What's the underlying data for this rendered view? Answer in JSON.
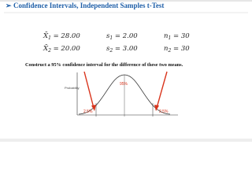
{
  "slide": {
    "bullet": "➢",
    "title": "Confidence Intervals, Independent Samples t-Test",
    "stats": [
      [
        {
          "symbol": "X̄",
          "sub": "1",
          "rest": " = 28.00"
        },
        {
          "symbol": "s",
          "sub": "1",
          "rest": " = 2.00"
        },
        {
          "symbol": "n",
          "sub": "1",
          "rest": " = 30"
        }
      ],
      [
        {
          "symbol": "X̄",
          "sub": "2",
          "rest": " = 20.00"
        },
        {
          "symbol": "s",
          "sub": "2",
          "rest": " = 3.00"
        },
        {
          "symbol": "n",
          "sub": "2",
          "rest": " = 30"
        }
      ]
    ],
    "task": "Construct a 95% confidence interval for the difference of these two means.",
    "figure": {
      "axis_label": "Probability",
      "center_label": "95%",
      "left_label": "2.5%",
      "right_label": "2.5%"
    }
  }
}
